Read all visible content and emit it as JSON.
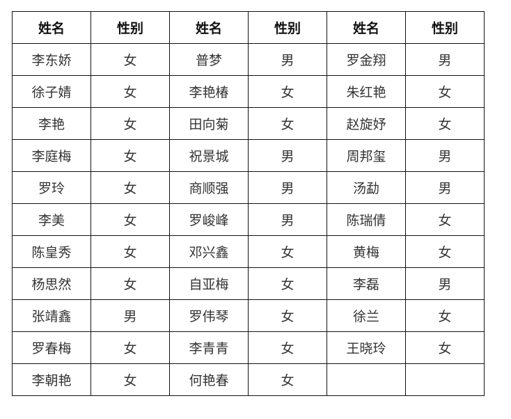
{
  "table": {
    "headers": [
      "姓名",
      "性别",
      "姓名",
      "性别",
      "姓名",
      "性别"
    ],
    "rows": [
      [
        "李东娇",
        "女",
        "普梦",
        "男",
        "罗金翔",
        "男"
      ],
      [
        "徐子婧",
        "女",
        "李艳椿",
        "女",
        "朱红艳",
        "女"
      ],
      [
        "李艳",
        "女",
        "田向菊",
        "女",
        "赵旋妤",
        "女"
      ],
      [
        "李庭梅",
        "女",
        "祝景城",
        "男",
        "周邦玺",
        "男"
      ],
      [
        "罗玲",
        "女",
        "商顺强",
        "男",
        "汤勐",
        "男"
      ],
      [
        "李美",
        "女",
        "罗峻峰",
        "男",
        "陈瑞倩",
        "女"
      ],
      [
        "陈皇秀",
        "女",
        "邓兴鑫",
        "女",
        "黄梅",
        "女"
      ],
      [
        "杨思然",
        "女",
        "自亚梅",
        "女",
        "李磊",
        "男"
      ],
      [
        "张靖鑫",
        "男",
        "罗伟琴",
        "女",
        "徐兰",
        "女"
      ],
      [
        "罗春梅",
        "女",
        "李青青",
        "女",
        "王晓玲",
        "女"
      ],
      [
        "李朝艳",
        "女",
        "何艳春",
        "女",
        "",
        ""
      ]
    ]
  }
}
